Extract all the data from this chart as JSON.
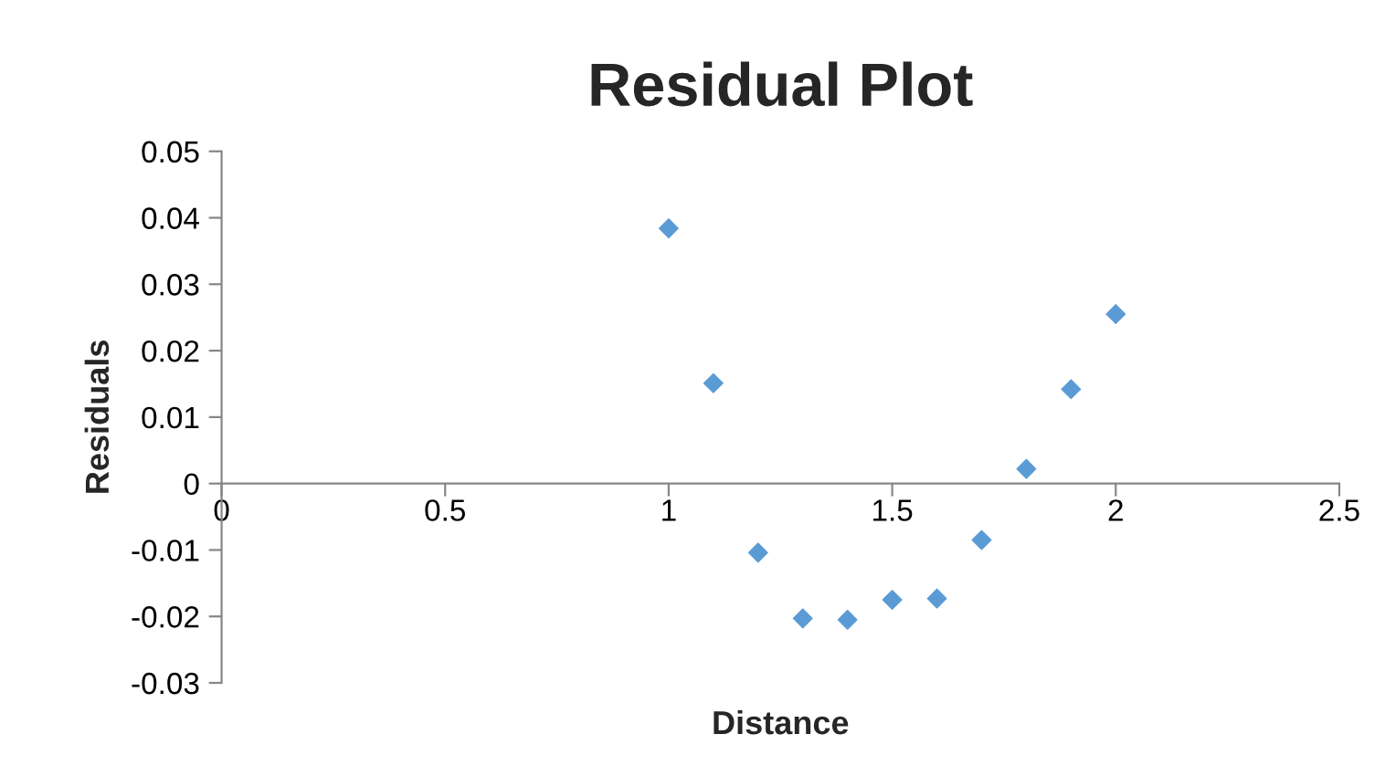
{
  "chart_data": {
    "type": "scatter",
    "title": "Residual Plot",
    "xlabel": "Distance",
    "ylabel": "Residuals",
    "x": [
      1.0,
      1.1,
      1.2,
      1.3,
      1.4,
      1.5,
      1.6,
      1.7,
      1.8,
      1.9,
      2.0
    ],
    "series": [
      {
        "color": "#5b9bd5",
        "values": [
          0.0384,
          0.0151,
          -0.0104,
          -0.0203,
          -0.0205,
          -0.0175,
          -0.0173,
          -0.0085,
          0.0022,
          0.0142,
          0.0255
        ]
      }
    ],
    "xlim": [
      0,
      2.5
    ],
    "xticks": [
      0,
      0.5,
      1,
      1.5,
      2,
      2.5
    ],
    "ylim": [
      -0.03,
      0.05
    ],
    "yticks": [
      {
        "value": -0.03,
        "label": "-0.03"
      },
      {
        "value": -0.02,
        "label": "-0.02"
      },
      {
        "value": -0.01,
        "label": "-0.01"
      },
      0,
      0.01,
      0.02,
      0.03,
      0.04,
      0.05
    ],
    "marker": "diamond",
    "grid": false
  }
}
